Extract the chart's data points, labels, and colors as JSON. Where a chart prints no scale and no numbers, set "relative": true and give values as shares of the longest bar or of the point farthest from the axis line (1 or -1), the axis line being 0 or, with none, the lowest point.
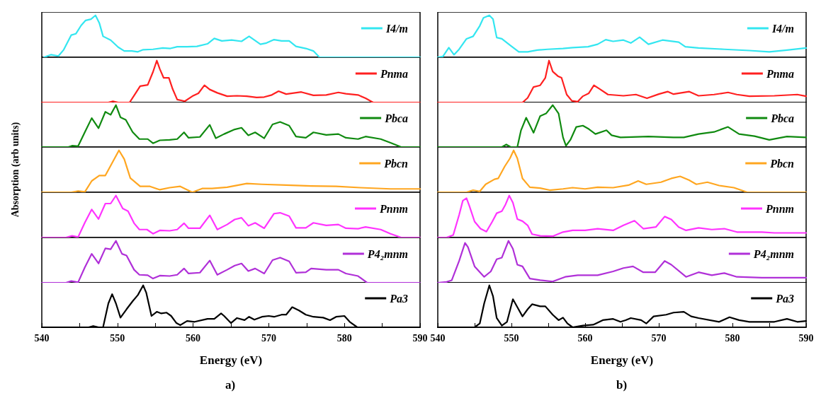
{
  "chart_data": [
    {
      "type": "line",
      "relative": true,
      "xlim": [
        540,
        590
      ],
      "tick_labels": false,
      "legend": "top right",
      "series": [
        {
          "name": "I4/m",
          "color": "#33e6f0",
          "x": [
            540.3,
            541.2,
            542.2,
            542.9,
            543.9,
            544.5,
            545.2,
            545.8,
            546.5,
            547.1,
            547.6,
            548.1,
            549.1,
            550.1,
            550.9,
            551.9,
            552.7,
            553.4,
            554.7,
            556,
            557,
            557.9,
            559.2,
            560.5,
            561.9,
            562.8,
            563.8,
            565.1,
            566.4,
            567.4,
            568.1,
            568.9,
            569.7,
            570.7,
            571.7,
            572.7,
            573.6,
            574.9,
            575.9,
            576.7,
            590
          ],
          "values": [
            0,
            0.06,
            0.03,
            0.18,
            0.53,
            0.56,
            0.76,
            0.88,
            0.91,
            1,
            0.82,
            0.5,
            0.41,
            0.24,
            0.15,
            0.15,
            0.13,
            0.18,
            0.19,
            0.22,
            0.21,
            0.25,
            0.25,
            0.26,
            0.32,
            0.45,
            0.39,
            0.41,
            0.38,
            0.5,
            0.41,
            0.31,
            0.34,
            0.42,
            0.39,
            0.39,
            0.26,
            0.21,
            0.15,
            0,
            0
          ]
        }
      ]
    },
    {
      "type": "line",
      "relative": true,
      "xlim": [
        540,
        590
      ],
      "tick_labels": false,
      "legend": "top right",
      "series": [
        {
          "name": "Pnma",
          "color": "#ff2020",
          "x": [
            540,
            548.8,
            549.4,
            550.1,
            551.6,
            552.4,
            553,
            554,
            554.7,
            555.2,
            555.6,
            556.1,
            556.8,
            557.3,
            557.9,
            558.9,
            559.9,
            560.7,
            561.5,
            562.2,
            563.2,
            564.5,
            565.8,
            567.1,
            568.4,
            569.4,
            570.4,
            571.3,
            572.3,
            574.3,
            575.9,
            577.6,
            579.2,
            580.2,
            581.8,
            582.8,
            583.8,
            590
          ],
          "values": [
            0,
            0,
            0.03,
            0,
            0,
            0.22,
            0.39,
            0.42,
            0.73,
            1,
            0.8,
            0.59,
            0.59,
            0.32,
            0.07,
            0.03,
            0.15,
            0.22,
            0.41,
            0.31,
            0.23,
            0.15,
            0.16,
            0.15,
            0.12,
            0.13,
            0.18,
            0.27,
            0.2,
            0.25,
            0.17,
            0.18,
            0.24,
            0.21,
            0.18,
            0.1,
            0,
            0
          ]
        }
      ]
    },
    {
      "type": "line",
      "relative": true,
      "xlim": [
        540,
        590
      ],
      "tick_labels": false,
      "legend": "top right",
      "series": [
        {
          "name": "Pbca",
          "color": "#108a10",
          "x": [
            540,
            543.5,
            544,
            544.8,
            545.7,
            546.6,
            547.5,
            548.4,
            549.1,
            549.8,
            550.4,
            551.1,
            552,
            552.9,
            554,
            554.7,
            555.6,
            556.9,
            557.9,
            558.8,
            559.4,
            560.9,
            562.2,
            563,
            564.1,
            565.5,
            566.4,
            567.3,
            568.2,
            569.4,
            570.5,
            571.5,
            572.7,
            573.6,
            574.9,
            575.9,
            577.6,
            579.2,
            580.2,
            581.8,
            582.8,
            584.8,
            586.1,
            587.5,
            590
          ],
          "values": [
            0,
            0,
            0.03,
            0.02,
            0.36,
            0.69,
            0.45,
            0.84,
            0.77,
            1,
            0.71,
            0.65,
            0.36,
            0.19,
            0.19,
            0.09,
            0.16,
            0.17,
            0.19,
            0.35,
            0.22,
            0.24,
            0.53,
            0.21,
            0.31,
            0.42,
            0.46,
            0.28,
            0.35,
            0.21,
            0.54,
            0.6,
            0.51,
            0.25,
            0.22,
            0.35,
            0.29,
            0.31,
            0.22,
            0.19,
            0.25,
            0.19,
            0.1,
            0,
            0
          ]
        }
      ]
    },
    {
      "type": "line",
      "relative": true,
      "xlim": [
        540,
        590
      ],
      "tick_labels": false,
      "legend": "top right",
      "ylabel": "Absorption (arb units)",
      "series": [
        {
          "name": "Pbcn",
          "color": "#ffa620",
          "x": [
            540,
            543.9,
            544.8,
            545.7,
            546.6,
            547.6,
            548.4,
            549.3,
            550.2,
            550.9,
            551.7,
            553,
            554.3,
            555.6,
            556.9,
            558.3,
            559.2,
            559.9,
            561.2,
            562.5,
            564.5,
            567.1,
            569.1,
            572.3,
            575.6,
            578.9,
            582.1,
            586.1,
            590
          ],
          "values": [
            0,
            0,
            0.03,
            0.01,
            0.27,
            0.4,
            0.4,
            0.7,
            1,
            0.79,
            0.34,
            0.14,
            0.14,
            0.06,
            0.11,
            0.14,
            0.06,
            0,
            0.09,
            0.09,
            0.12,
            0.21,
            0.19,
            0.17,
            0.15,
            0.14,
            0.11,
            0.08,
            0.08
          ]
        }
      ]
    },
    {
      "type": "line",
      "relative": true,
      "xlim": [
        540,
        590
      ],
      "tick_labels": false,
      "legend": "top right",
      "series": [
        {
          "name": "Pnnm",
          "color": "#ff33ff",
          "x": [
            540,
            543.2,
            544,
            544.8,
            545.7,
            546.6,
            547.5,
            548.4,
            549.1,
            549.8,
            550.7,
            551.4,
            552.2,
            552.9,
            553.9,
            554.7,
            555.6,
            556.9,
            557.9,
            558.8,
            559.4,
            560.9,
            562.2,
            563.2,
            564.5,
            565.5,
            566.4,
            567.3,
            568.2,
            569.4,
            570.7,
            571.5,
            572.7,
            573.6,
            574.9,
            575.9,
            577.6,
            579.2,
            580.2,
            581.8,
            582.8,
            584.8,
            586.1,
            587.5,
            590
          ],
          "values": [
            0,
            0,
            0.04,
            0.01,
            0.36,
            0.67,
            0.44,
            0.81,
            0.81,
            1,
            0.69,
            0.63,
            0.34,
            0.19,
            0.19,
            0.09,
            0.17,
            0.16,
            0.19,
            0.34,
            0.22,
            0.22,
            0.53,
            0.19,
            0.31,
            0.43,
            0.47,
            0.28,
            0.35,
            0.22,
            0.57,
            0.59,
            0.51,
            0.23,
            0.23,
            0.35,
            0.29,
            0.31,
            0.22,
            0.21,
            0.25,
            0.19,
            0.09,
            0,
            0
          ]
        }
      ]
    },
    {
      "type": "line",
      "relative": true,
      "xlim": [
        540,
        590
      ],
      "tick_labels": false,
      "legend": "top right",
      "series": [
        {
          "name": "P4₂mnm",
          "color": "#b030d8",
          "x": [
            540,
            543.2,
            543.9,
            544.8,
            545.7,
            546.6,
            547.5,
            548.4,
            549.1,
            549.8,
            550.6,
            551.2,
            552.2,
            552.9,
            554,
            554.7,
            555.6,
            556.9,
            557.9,
            558.8,
            559.4,
            560.9,
            562.2,
            563.2,
            564.5,
            565.5,
            566.4,
            567.3,
            568.2,
            569.4,
            570.5,
            571.5,
            572.7,
            573.6,
            574.9,
            575.6,
            577.6,
            579.2,
            580.2,
            581.8,
            583,
            590
          ],
          "values": [
            0,
            0,
            0.04,
            0.01,
            0.37,
            0.69,
            0.46,
            0.82,
            0.8,
            1,
            0.69,
            0.65,
            0.31,
            0.19,
            0.18,
            0.1,
            0.17,
            0.16,
            0.19,
            0.34,
            0.22,
            0.24,
            0.53,
            0.19,
            0.31,
            0.41,
            0.46,
            0.28,
            0.34,
            0.22,
            0.54,
            0.6,
            0.51,
            0.24,
            0.25,
            0.34,
            0.31,
            0.31,
            0.22,
            0.16,
            0,
            0
          ]
        }
      ]
    },
    {
      "type": "line",
      "relative": true,
      "xlim": [
        540,
        590
      ],
      "xticks": [
        540,
        {
          "value": 545,
          "label": null
        },
        550,
        {
          "value": 555,
          "label": null
        },
        560,
        {
          "value": 565,
          "label": null
        },
        570,
        {
          "value": 575,
          "label": null
        },
        580,
        {
          "value": 585,
          "label": null
        },
        590
      ],
      "tick_labels": "x",
      "xlabel": "Energy (eV)",
      "annotations": [
        "a)"
      ],
      "legend": "top right",
      "series": [
        {
          "name": "Pa3",
          "color": "#000000",
          "x": [
            540,
            546.2,
            546.8,
            547.5,
            548.1,
            548.8,
            549.3,
            549.8,
            550.4,
            551.2,
            552,
            552.7,
            553.4,
            553.8,
            554.5,
            555.2,
            555.8,
            556.5,
            557.1,
            557.8,
            558.3,
            559.2,
            560.2,
            561.9,
            562.8,
            563.7,
            564.1,
            565,
            565.8,
            566.8,
            567.4,
            568.1,
            569.1,
            570,
            570.7,
            571.7,
            572.3,
            573.1,
            574,
            574.9,
            575.9,
            577.2,
            578.1,
            578.9,
            580,
            580.7,
            581.7,
            590
          ],
          "values": [
            0,
            0,
            0.03,
            0,
            0,
            0.57,
            0.79,
            0.57,
            0.23,
            0.43,
            0.62,
            0.77,
            1,
            0.83,
            0.27,
            0.37,
            0.33,
            0.35,
            0.27,
            0.1,
            0.05,
            0.15,
            0.13,
            0.2,
            0.2,
            0.33,
            0.27,
            0.1,
            0.22,
            0.17,
            0.25,
            0.18,
            0.25,
            0.27,
            0.25,
            0.3,
            0.3,
            0.48,
            0.4,
            0.3,
            0.25,
            0.23,
            0.17,
            0.25,
            0.27,
            0.13,
            0,
            0
          ]
        }
      ]
    },
    {
      "type": "line",
      "relative": true,
      "xlim": [
        540,
        590
      ],
      "tick_labels": false,
      "legend": "top right",
      "series": [
        {
          "name": "I4/m",
          "color": "#33e6f0",
          "x": [
            540,
            540.7,
            541.5,
            542.2,
            542.9,
            543.9,
            544.8,
            545.7,
            546.2,
            547,
            547.5,
            548,
            548.7,
            549.8,
            551,
            552.2,
            553.5,
            554.9,
            557,
            558.3,
            560.4,
            561.7,
            562.8,
            563.8,
            565.2,
            566.2,
            567.4,
            568.6,
            570.5,
            572.7,
            573.6,
            575.4,
            578.9,
            582.3,
            585,
            587.4,
            590
          ],
          "values": [
            0,
            0.02,
            0.23,
            0.06,
            0.19,
            0.44,
            0.5,
            0.75,
            0.94,
            1,
            0.91,
            0.47,
            0.44,
            0.29,
            0.13,
            0.13,
            0.17,
            0.19,
            0.21,
            0.23,
            0.25,
            0.31,
            0.42,
            0.38,
            0.41,
            0.34,
            0.48,
            0.31,
            0.41,
            0.36,
            0.25,
            0.22,
            0.19,
            0.16,
            0.13,
            0.17,
            0.22
          ]
        }
      ]
    },
    {
      "type": "line",
      "relative": true,
      "xlim": [
        540,
        590
      ],
      "tick_labels": false,
      "legend": "top right",
      "series": [
        {
          "name": "Pnma",
          "color": "#ff2020",
          "x": [
            540,
            551.5,
            552.2,
            553,
            553.9,
            554.6,
            555.1,
            555.6,
            556.3,
            556.8,
            557.5,
            558.2,
            559,
            559.7,
            560.5,
            561.2,
            561.9,
            563.1,
            565.2,
            566.9,
            568.4,
            570,
            571.2,
            572,
            574.1,
            575.4,
            577.5,
            579.4,
            580.6,
            582.3,
            585.7,
            588.8,
            590
          ],
          "values": [
            0,
            0,
            0.11,
            0.37,
            0.41,
            0.59,
            1,
            0.74,
            0.63,
            0.59,
            0.19,
            0.04,
            0.02,
            0.15,
            0.22,
            0.41,
            0.33,
            0.19,
            0.16,
            0.19,
            0.1,
            0.2,
            0.26,
            0.2,
            0.26,
            0.16,
            0.19,
            0.24,
            0.19,
            0.15,
            0.16,
            0.19,
            0.15
          ]
        }
      ]
    },
    {
      "type": "line",
      "relative": true,
      "xlim": [
        540,
        590
      ],
      "tick_labels": false,
      "legend": "top right",
      "series": [
        {
          "name": "Pbca",
          "color": "#108a10",
          "x": [
            540,
            548.7,
            549.3,
            549.9,
            550.8,
            551.3,
            552,
            553,
            553.9,
            554.7,
            555.6,
            556.4,
            557,
            557.4,
            558,
            558.8,
            559.7,
            560.5,
            561.4,
            562.9,
            563.6,
            564.8,
            568.6,
            572,
            573.4,
            575.4,
            577.5,
            579.4,
            580.9,
            583,
            585,
            587.4,
            590
          ],
          "values": [
            0,
            0,
            0.06,
            0,
            0,
            0.4,
            0.7,
            0.34,
            0.74,
            0.8,
            1,
            0.8,
            0.23,
            0.03,
            0.17,
            0.48,
            0.51,
            0.43,
            0.31,
            0.4,
            0.28,
            0.23,
            0.25,
            0.23,
            0.23,
            0.31,
            0.36,
            0.48,
            0.31,
            0.26,
            0.17,
            0.25,
            0.23
          ]
        }
      ]
    },
    {
      "type": "line",
      "relative": true,
      "xlim": [
        540,
        590
      ],
      "tick_labels": false,
      "legend": "top right",
      "series": [
        {
          "name": "Pbcn",
          "color": "#ffa620",
          "x": [
            540,
            543.9,
            544.8,
            545.7,
            546.5,
            547.7,
            548.2,
            549.1,
            549.8,
            550.3,
            550.8,
            551.5,
            552.5,
            553.9,
            555.2,
            557,
            558.3,
            560,
            561.7,
            563.8,
            565.9,
            567.2,
            568.3,
            570.3,
            571.7,
            572.9,
            574.1,
            575.1,
            576.6,
            578.2,
            580.2,
            582,
            590
          ],
          "values": [
            0,
            0,
            0.05,
            0.02,
            0.19,
            0.31,
            0.33,
            0.62,
            0.81,
            1,
            0.81,
            0.33,
            0.12,
            0.1,
            0.05,
            0.08,
            0.11,
            0.08,
            0.12,
            0.11,
            0.17,
            0.27,
            0.19,
            0.24,
            0.33,
            0.38,
            0.29,
            0.19,
            0.24,
            0.16,
            0.11,
            0,
            0
          ]
        }
      ]
    },
    {
      "type": "line",
      "relative": true,
      "xlim": [
        540,
        590
      ],
      "tick_labels": false,
      "legend": "top right",
      "series": [
        {
          "name": "Pnnm",
          "color": "#ff33ff",
          "x": [
            540,
            541.2,
            542.1,
            542.9,
            543.4,
            543.9,
            544.3,
            545,
            545.8,
            546.6,
            547.4,
            548,
            548.7,
            549.2,
            549.7,
            550.2,
            550.8,
            551.5,
            552.2,
            552.8,
            553.9,
            555.6,
            557,
            558.3,
            560,
            561.7,
            563.8,
            565.2,
            566.7,
            567.9,
            569.6,
            570.8,
            571.7,
            572.7,
            573.7,
            575.4,
            577.2,
            578.9,
            580.6,
            584,
            585.7,
            590
          ],
          "values": [
            0,
            0,
            0.06,
            0.54,
            0.88,
            0.94,
            0.75,
            0.38,
            0.21,
            0.14,
            0.38,
            0.58,
            0.63,
            0.79,
            1,
            0.83,
            0.44,
            0.39,
            0.29,
            0.08,
            0.04,
            0.03,
            0.13,
            0.17,
            0.17,
            0.21,
            0.17,
            0.29,
            0.4,
            0.21,
            0.25,
            0.5,
            0.43,
            0.25,
            0.17,
            0.23,
            0.19,
            0.21,
            0.13,
            0.13,
            0.11,
            0.11
          ]
        }
      ]
    },
    {
      "type": "line",
      "relative": true,
      "xlim": [
        540,
        590
      ],
      "tick_labels": false,
      "legend": "top right",
      "series": [
        {
          "name": "P4₂mnm",
          "color": "#b030d8",
          "x": [
            540,
            541.2,
            541.9,
            542.9,
            543.7,
            544.1,
            545,
            546.3,
            547.2,
            548,
            548.7,
            549.6,
            550.2,
            550.8,
            551.5,
            552.5,
            553.9,
            555.6,
            557.3,
            559,
            561.7,
            563.8,
            565.2,
            566.5,
            567.9,
            569.5,
            570.8,
            571.7,
            573.7,
            575.4,
            577.2,
            578.9,
            580.6,
            584,
            590
          ],
          "values": [
            0,
            0.02,
            0.06,
            0.52,
            0.95,
            0.85,
            0.39,
            0.14,
            0.27,
            0.56,
            0.6,
            1,
            0.81,
            0.43,
            0.39,
            0.1,
            0.06,
            0.03,
            0.14,
            0.18,
            0.18,
            0.27,
            0.35,
            0.39,
            0.25,
            0.25,
            0.52,
            0.43,
            0.14,
            0.25,
            0.18,
            0.23,
            0.14,
            0.12,
            0.12
          ]
        }
      ]
    },
    {
      "type": "line",
      "relative": true,
      "xlim": [
        540,
        590
      ],
      "xticks": [
        540,
        {
          "value": 545,
          "label": null
        },
        550,
        {
          "value": 555,
          "label": null
        },
        560,
        {
          "value": 565,
          "label": null
        },
        570,
        {
          "value": 575,
          "label": null
        },
        580,
        {
          "value": 585,
          "label": null
        },
        590
      ],
      "tick_labels": "x",
      "xlabel": "Energy (eV)",
      "annotations": [
        "b)"
      ],
      "legend": "top right",
      "series": [
        {
          "name": "Pa3",
          "color": "#000000",
          "x": [
            540,
            545,
            545.7,
            546.3,
            547,
            547.5,
            548,
            548.7,
            549.4,
            550.2,
            550.8,
            551.5,
            552.2,
            552.8,
            553.9,
            554.6,
            555.6,
            556.4,
            557,
            557.6,
            558.3,
            559.7,
            561.1,
            562.4,
            563.8,
            564.8,
            565.5,
            566.2,
            567.6,
            568.3,
            569.3,
            571,
            572,
            573.4,
            574.4,
            575.4,
            578.2,
            579.6,
            580.9,
            582.3,
            585.7,
            587.4,
            588.8,
            590
          ],
          "values": [
            0,
            0,
            0.09,
            0.57,
            1,
            0.74,
            0.22,
            0.04,
            0.13,
            0.67,
            0.48,
            0.26,
            0.43,
            0.55,
            0.5,
            0.5,
            0.3,
            0.17,
            0.23,
            0.09,
            0,
            0.04,
            0.06,
            0.17,
            0.2,
            0.13,
            0.17,
            0.22,
            0.17,
            0.09,
            0.26,
            0.3,
            0.35,
            0.37,
            0.26,
            0.22,
            0.13,
            0.24,
            0.17,
            0.13,
            0.13,
            0.2,
            0.13,
            0.15
          ]
        }
      ]
    }
  ]
}
